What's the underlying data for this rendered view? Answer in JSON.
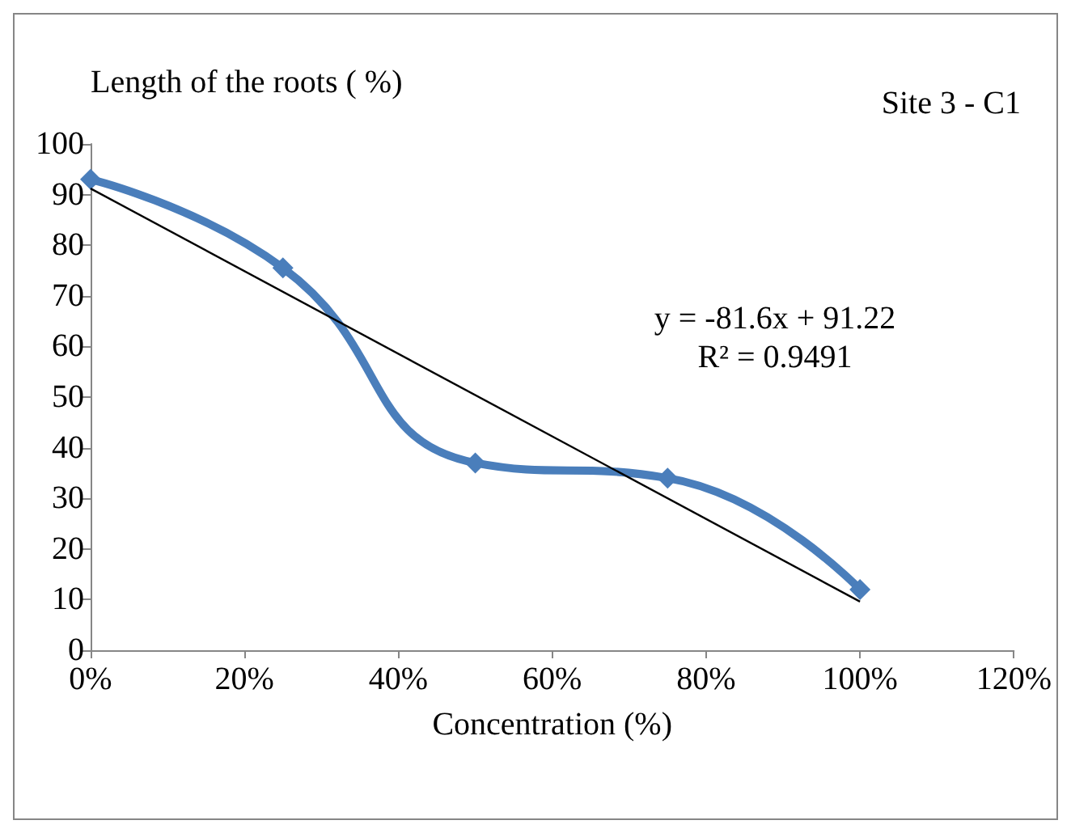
{
  "chart_data": {
    "type": "line",
    "ylabel": "Length of the roots ( %)",
    "xlabel": "Concentration (%)",
    "annotations": [
      "Site 3 - C1",
      "y = -81.6x + 91.22",
      "R² = 0.9491"
    ],
    "x": [
      0,
      25,
      50,
      75,
      100
    ],
    "series": [
      {
        "color": "#4a7ebb",
        "values": [
          93,
          75.5,
          37,
          34,
          12
        ],
        "marker": "diamond"
      },
      {
        "type": "line",
        "color": "#000000",
        "x": [
          0,
          100
        ],
        "values": [
          91.2,
          9.6
        ],
        "marker": "none"
      }
    ],
    "xlim": [
      0,
      120
    ],
    "xticks": [
      {
        "value": 0,
        "label": "0%"
      },
      {
        "value": 20,
        "label": "20%"
      },
      {
        "value": 40,
        "label": "40%"
      },
      {
        "value": 60,
        "label": "60%"
      },
      {
        "value": 80,
        "label": "80%"
      },
      {
        "value": 100,
        "label": "100%"
      },
      {
        "value": 120,
        "label": "120%"
      }
    ],
    "ylim": [
      0,
      100
    ],
    "yticks": [
      0,
      10,
      20,
      30,
      40,
      50,
      60,
      70,
      80,
      90,
      100
    ],
    "grid": false
  }
}
